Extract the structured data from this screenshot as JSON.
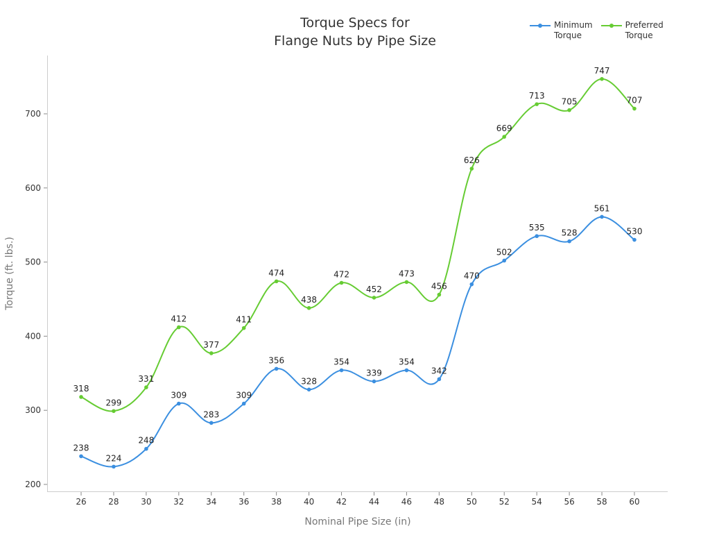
{
  "chart_data": {
    "type": "line",
    "title": "Torque Specs for\nFlange Nuts by Pipe Size",
    "title_lines": [
      "Torque Specs for",
      "Flange Nuts by Pipe Size"
    ],
    "xlabel": "Nominal Pipe Size (in)",
    "ylabel": "Torque (ft. lbs.)",
    "x": [
      26,
      28,
      30,
      32,
      34,
      36,
      38,
      40,
      42,
      44,
      46,
      48,
      50,
      52,
      54,
      56,
      58,
      60
    ],
    "yticks": [
      200,
      300,
      400,
      500,
      600,
      700
    ],
    "ylim": [
      192,
      780
    ],
    "grid": false,
    "legend_position": "top-right",
    "series": [
      {
        "name": "Minimum Torque",
        "color": "#3b8fe0",
        "values": [
          238,
          224,
          248,
          309,
          283,
          309,
          356,
          328,
          354,
          339,
          354,
          342,
          470,
          502,
          535,
          528,
          561,
          530
        ]
      },
      {
        "name": "Preferred Torque",
        "color": "#66cc33",
        "values": [
          318,
          299,
          331,
          412,
          377,
          411,
          474,
          438,
          472,
          452,
          473,
          456,
          626,
          669,
          713,
          705,
          747,
          707
        ]
      }
    ]
  },
  "legend": {
    "items": [
      {
        "label": "Minimum\nTorque",
        "color": "#3b8fe0"
      },
      {
        "label": "Preferred\nTorque",
        "color": "#66cc33"
      }
    ]
  }
}
